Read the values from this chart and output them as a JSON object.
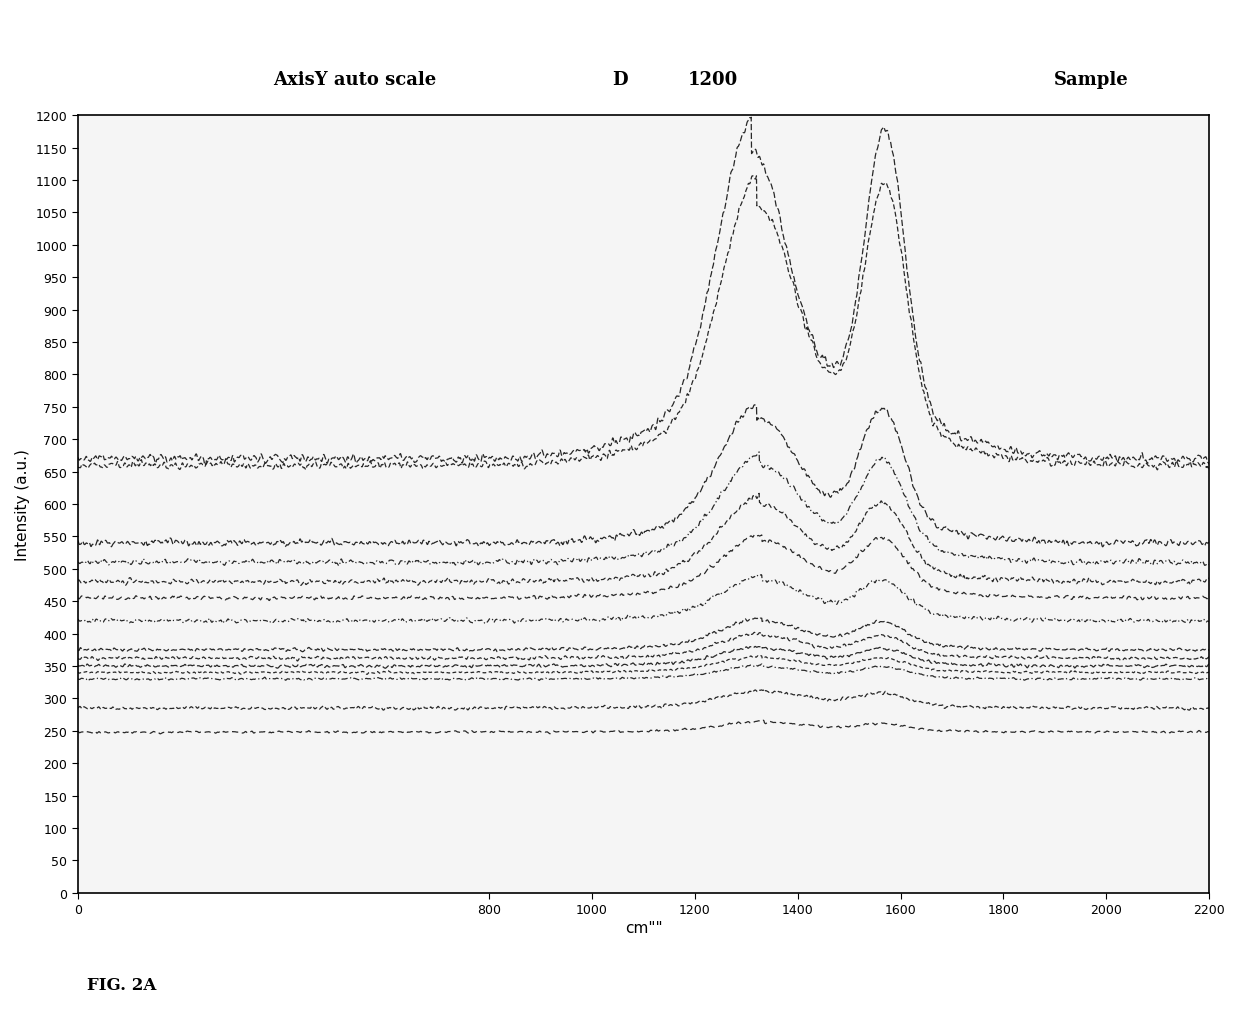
{
  "title_left": "AxisY auto scale",
  "title_mid": "D",
  "title_mid2": "1200",
  "title_right": "Sample",
  "xlabel": "cm\"\"",
  "ylabel": "Intensity (a.u.)",
  "fig_label": "FIG. 2A",
  "xlim": [
    0,
    2200
  ],
  "ylim": [
    0,
    1200
  ],
  "xticks": [
    0,
    800,
    1000,
    1200,
    1400,
    1600,
    1800,
    2000,
    2200
  ],
  "yticks": [
    0,
    50,
    100,
    150,
    200,
    250,
    300,
    350,
    400,
    450,
    500,
    550,
    600,
    650,
    700,
    750,
    800,
    850,
    900,
    950,
    1000,
    1050,
    1100,
    1150,
    1200
  ],
  "background_color": "#f5f5f5",
  "line_color": "#111111",
  "num_lines": 14,
  "line_params": [
    {
      "base": 670,
      "d_amp": 380,
      "g_amp": 420,
      "d_mu": 1310,
      "g_mu": 1570,
      "d_sig": 65,
      "g_sig": 38,
      "noise": 8,
      "ls": [
        5,
        2
      ],
      "seed": 1
    },
    {
      "base": 660,
      "d_amp": 320,
      "g_amp": 360,
      "d_mu": 1320,
      "g_mu": 1570,
      "d_sig": 68,
      "g_sig": 40,
      "noise": 7,
      "ls": [
        4,
        2
      ],
      "seed": 2
    },
    {
      "base": 540,
      "d_amp": 155,
      "g_amp": 170,
      "d_mu": 1320,
      "g_mu": 1565,
      "d_sig": 70,
      "g_sig": 42,
      "noise": 6,
      "ls": [
        6,
        2
      ],
      "seed": 3
    },
    {
      "base": 510,
      "d_amp": 120,
      "g_amp": 130,
      "d_mu": 1325,
      "g_mu": 1565,
      "d_sig": 72,
      "g_sig": 43,
      "noise": 5,
      "ls": [
        5,
        2,
        1,
        2
      ],
      "seed": 4
    },
    {
      "base": 480,
      "d_amp": 95,
      "g_amp": 100,
      "d_mu": 1325,
      "g_mu": 1565,
      "d_sig": 73,
      "g_sig": 44,
      "noise": 5,
      "ls": [
        4,
        2
      ],
      "seed": 5
    },
    {
      "base": 455,
      "d_amp": 70,
      "g_amp": 75,
      "d_mu": 1330,
      "g_mu": 1565,
      "d_sig": 75,
      "g_sig": 45,
      "noise": 4,
      "ls": [
        5,
        3
      ],
      "seed": 6
    },
    {
      "base": 420,
      "d_amp": 50,
      "g_amp": 50,
      "d_mu": 1330,
      "g_mu": 1565,
      "d_sig": 75,
      "g_sig": 45,
      "noise": 4,
      "ls": [
        4,
        2,
        1,
        2
      ],
      "seed": 7
    },
    {
      "base": 375,
      "d_amp": 35,
      "g_amp": 35,
      "d_mu": 1330,
      "g_mu": 1565,
      "d_sig": 76,
      "g_sig": 46,
      "noise": 3,
      "ls": [
        5,
        2
      ],
      "seed": 8
    },
    {
      "base": 362,
      "d_amp": 28,
      "g_amp": 28,
      "d_mu": 1330,
      "g_mu": 1565,
      "d_sig": 76,
      "g_sig": 46,
      "noise": 3,
      "ls": [
        4,
        2
      ],
      "seed": 9
    },
    {
      "base": 350,
      "d_amp": 22,
      "g_amp": 22,
      "d_mu": 1330,
      "g_mu": 1565,
      "d_sig": 76,
      "g_sig": 47,
      "noise": 3,
      "ls": [
        6,
        2
      ],
      "seed": 10
    },
    {
      "base": 340,
      "d_amp": 18,
      "g_amp": 18,
      "d_mu": 1330,
      "g_mu": 1565,
      "d_sig": 77,
      "g_sig": 47,
      "noise": 2,
      "ls": [
        3,
        2
      ],
      "seed": 11
    },
    {
      "base": 330,
      "d_amp": 15,
      "g_amp": 15,
      "d_mu": 1330,
      "g_mu": 1565,
      "d_sig": 77,
      "g_sig": 47,
      "noise": 2,
      "ls": [
        5,
        2,
        1,
        2
      ],
      "seed": 12
    },
    {
      "base": 285,
      "d_amp": 20,
      "g_amp": 18,
      "d_mu": 1335,
      "g_mu": 1565,
      "d_sig": 78,
      "g_sig": 48,
      "noise": 3,
      "ls": [
        4,
        2
      ],
      "seed": 13
    },
    {
      "base": 248,
      "d_amp": 12,
      "g_amp": 10,
      "d_mu": 1335,
      "g_mu": 1565,
      "d_sig": 78,
      "g_sig": 48,
      "noise": 2,
      "ls": [
        5,
        3
      ],
      "seed": 14
    }
  ]
}
